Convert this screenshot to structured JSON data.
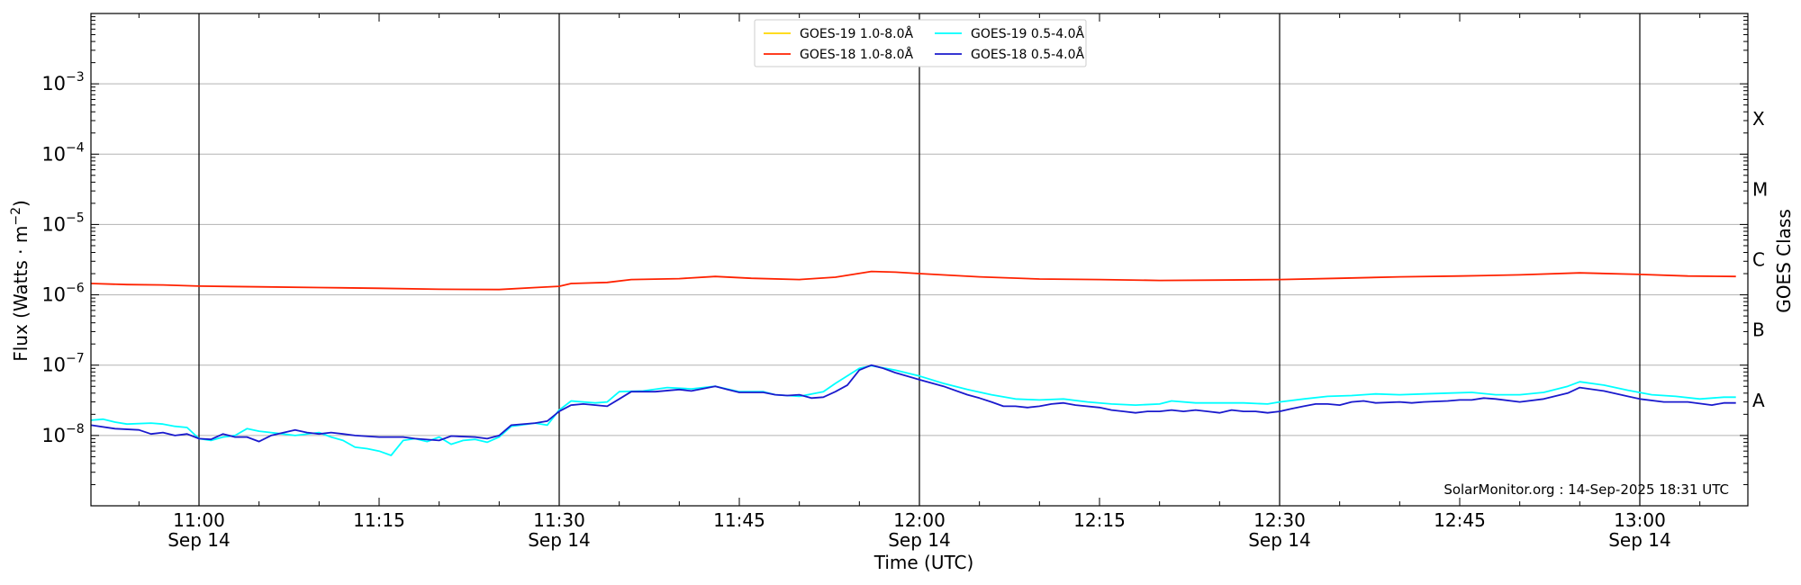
{
  "chart_data": {
    "type": "line",
    "title": "",
    "xlabel": "Time (UTC)",
    "ylabel_main": "Flux (Watts · m",
    "ylabel_sup": "−2",
    "ylabel_close": ")",
    "y2label": "GOES Class",
    "y_scale": "log",
    "ylim": [
      1e-09,
      0.01
    ],
    "xlim": [
      "10:51",
      "13:09"
    ],
    "x_ticks": [
      {
        "t": "11:00",
        "label": "11:00",
        "sub": "Sep 14"
      },
      {
        "t": "11:15",
        "label": "11:15",
        "sub": ""
      },
      {
        "t": "11:30",
        "label": "11:30",
        "sub": "Sep 14"
      },
      {
        "t": "11:45",
        "label": "11:45",
        "sub": ""
      },
      {
        "t": "12:00",
        "label": "12:00",
        "sub": "Sep 14"
      },
      {
        "t": "12:15",
        "label": "12:15",
        "sub": ""
      },
      {
        "t": "12:30",
        "label": "12:30",
        "sub": "Sep 14"
      },
      {
        "t": "12:45",
        "label": "12:45",
        "sub": ""
      },
      {
        "t": "13:00",
        "label": "13:00",
        "sub": "Sep 14"
      }
    ],
    "y_ticks": [
      {
        "v": 1e-08,
        "base": "10",
        "exp": "−8"
      },
      {
        "v": 1e-07,
        "base": "10",
        "exp": "−7"
      },
      {
        "v": 1e-06,
        "base": "10",
        "exp": "−6"
      },
      {
        "v": 1e-05,
        "base": "10",
        "exp": "−5"
      },
      {
        "v": 0.0001,
        "base": "10",
        "exp": "−4"
      },
      {
        "v": 0.001,
        "base": "10",
        "exp": "−3"
      }
    ],
    "goes_classes": [
      {
        "label": "A",
        "v": 1e-08
      },
      {
        "label": "B",
        "v": 1e-07
      },
      {
        "label": "C",
        "v": 1e-06
      },
      {
        "label": "M",
        "v": 1e-05
      },
      {
        "label": "X",
        "v": 0.0001
      }
    ],
    "grid": {
      "horizontal": true,
      "vertical_lines_at": [
        "11:00",
        "11:30",
        "12:00",
        "12:30",
        "13:00"
      ]
    },
    "legend_position": "top-center",
    "legend": [
      {
        "label": "GOES-19 1.0-8.0Å",
        "color": "#ffd700"
      },
      {
        "label": "GOES-18 1.0-8.0Å",
        "color": "#ff2200"
      },
      {
        "label": "GOES-19 0.5-4.0Å",
        "color": "#00ffff"
      },
      {
        "label": "GOES-18 0.5-4.0Å",
        "color": "#1a1acd"
      }
    ],
    "annotation": "SolarMonitor.org : 14-Sep-2025 18:31 UTC",
    "series": [
      {
        "name": "GOES-19 1.0-8.0Å",
        "color": "#ffd700",
        "points": []
      },
      {
        "name": "GOES-18 1.0-8.0Å",
        "color": "#ff2200",
        "points": [
          [
            "10:51",
            1.45e-06
          ],
          [
            "10:54",
            1.4e-06
          ],
          [
            "10:57",
            1.38e-06
          ],
          [
            "11:00",
            1.33e-06
          ],
          [
            "11:05",
            1.3e-06
          ],
          [
            "11:10",
            1.27e-06
          ],
          [
            "11:15",
            1.24e-06
          ],
          [
            "11:20",
            1.2e-06
          ],
          [
            "11:25",
            1.19e-06
          ],
          [
            "11:28",
            1.27e-06
          ],
          [
            "11:30",
            1.32e-06
          ],
          [
            "11:31",
            1.45e-06
          ],
          [
            "11:34",
            1.5e-06
          ],
          [
            "11:36",
            1.65e-06
          ],
          [
            "11:40",
            1.7e-06
          ],
          [
            "11:43",
            1.82e-06
          ],
          [
            "11:46",
            1.72e-06
          ],
          [
            "11:50",
            1.65e-06
          ],
          [
            "11:53",
            1.78e-06
          ],
          [
            "11:56",
            2.15e-06
          ],
          [
            "11:58",
            2.1e-06
          ],
          [
            "12:00",
            2e-06
          ],
          [
            "12:05",
            1.8e-06
          ],
          [
            "12:10",
            1.68e-06
          ],
          [
            "12:15",
            1.65e-06
          ],
          [
            "12:20",
            1.6e-06
          ],
          [
            "12:25",
            1.62e-06
          ],
          [
            "12:30",
            1.65e-06
          ],
          [
            "12:35",
            1.72e-06
          ],
          [
            "12:40",
            1.8e-06
          ],
          [
            "12:45",
            1.85e-06
          ],
          [
            "12:50",
            1.92e-06
          ],
          [
            "12:55",
            2.05e-06
          ],
          [
            "13:00",
            1.95e-06
          ],
          [
            "13:04",
            1.85e-06
          ],
          [
            "13:08",
            1.82e-06
          ]
        ]
      },
      {
        "name": "GOES-19 0.5-4.0Å",
        "color": "#00ffff",
        "points": [
          [
            "10:51",
            1.65e-08
          ],
          [
            "10:52",
            1.7e-08
          ],
          [
            "10:53",
            1.55e-08
          ],
          [
            "10:54",
            1.45e-08
          ],
          [
            "10:56",
            1.5e-08
          ],
          [
            "10:57",
            1.45e-08
          ],
          [
            "10:58",
            1.35e-08
          ],
          [
            "10:59",
            1.3e-08
          ],
          [
            "11:00",
            9e-09
          ],
          [
            "11:01",
            8.5e-09
          ],
          [
            "11:02",
            9.5e-09
          ],
          [
            "11:03",
            1e-08
          ],
          [
            "11:04",
            1.25e-08
          ],
          [
            "11:05",
            1.15e-08
          ],
          [
            "11:06",
            1.1e-08
          ],
          [
            "11:07",
            1.05e-08
          ],
          [
            "11:08",
            1e-08
          ],
          [
            "11:10",
            1.1e-08
          ],
          [
            "11:11",
            9.5e-09
          ],
          [
            "11:12",
            8.5e-09
          ],
          [
            "11:13",
            6.8e-09
          ],
          [
            "11:14",
            6.5e-09
          ],
          [
            "11:15",
            6e-09
          ],
          [
            "11:16",
            5.2e-09
          ],
          [
            "11:17",
            8.5e-09
          ],
          [
            "11:18",
            9e-09
          ],
          [
            "11:19",
            8.2e-09
          ],
          [
            "11:20",
            9.5e-09
          ],
          [
            "11:21",
            7.5e-09
          ],
          [
            "11:22",
            8.5e-09
          ],
          [
            "11:23",
            8.8e-09
          ],
          [
            "11:24",
            8e-09
          ],
          [
            "11:25",
            9.5e-09
          ],
          [
            "11:26",
            1.35e-08
          ],
          [
            "11:28",
            1.5e-08
          ],
          [
            "11:29",
            1.4e-08
          ],
          [
            "11:30",
            2.3e-08
          ],
          [
            "11:31",
            3.1e-08
          ],
          [
            "11:32",
            3e-08
          ],
          [
            "11:33",
            2.9e-08
          ],
          [
            "11:34",
            3e-08
          ],
          [
            "11:35",
            4.2e-08
          ],
          [
            "11:37",
            4.3e-08
          ],
          [
            "11:39",
            4.8e-08
          ],
          [
            "11:41",
            4.6e-08
          ],
          [
            "11:43",
            5e-08
          ],
          [
            "11:45",
            4.2e-08
          ],
          [
            "11:47",
            4.2e-08
          ],
          [
            "11:48",
            3.8e-08
          ],
          [
            "11:50",
            3.6e-08
          ],
          [
            "11:52",
            4.2e-08
          ],
          [
            "11:53",
            5.5e-08
          ],
          [
            "11:55",
            9e-08
          ],
          [
            "11:56",
            9.8e-08
          ],
          [
            "11:58",
            8.5e-08
          ],
          [
            "12:00",
            7e-08
          ],
          [
            "12:02",
            5.5e-08
          ],
          [
            "12:04",
            4.5e-08
          ],
          [
            "12:06",
            3.8e-08
          ],
          [
            "12:08",
            3.3e-08
          ],
          [
            "12:10",
            3.2e-08
          ],
          [
            "12:12",
            3.3e-08
          ],
          [
            "12:14",
            3e-08
          ],
          [
            "12:16",
            2.8e-08
          ],
          [
            "12:18",
            2.7e-08
          ],
          [
            "12:20",
            2.8e-08
          ],
          [
            "12:21",
            3.1e-08
          ],
          [
            "12:23",
            2.9e-08
          ],
          [
            "12:25",
            2.9e-08
          ],
          [
            "12:27",
            2.9e-08
          ],
          [
            "12:29",
            2.8e-08
          ],
          [
            "12:30",
            3e-08
          ],
          [
            "12:32",
            3.3e-08
          ],
          [
            "12:34",
            3.6e-08
          ],
          [
            "12:36",
            3.7e-08
          ],
          [
            "12:38",
            3.9e-08
          ],
          [
            "12:40",
            3.8e-08
          ],
          [
            "12:42",
            3.9e-08
          ],
          [
            "12:44",
            4e-08
          ],
          [
            "12:46",
            4.1e-08
          ],
          [
            "12:48",
            3.8e-08
          ],
          [
            "12:50",
            3.8e-08
          ],
          [
            "12:52",
            4.1e-08
          ],
          [
            "12:54",
            5e-08
          ],
          [
            "12:55",
            5.8e-08
          ],
          [
            "12:57",
            5.2e-08
          ],
          [
            "12:59",
            4.4e-08
          ],
          [
            "13:01",
            3.8e-08
          ],
          [
            "13:03",
            3.6e-08
          ],
          [
            "13:05",
            3.3e-08
          ],
          [
            "13:07",
            3.5e-08
          ],
          [
            "13:08",
            3.5e-08
          ]
        ]
      },
      {
        "name": "GOES-18 0.5-4.0Å",
        "color": "#1a1acd",
        "points": [
          [
            "10:51",
            1.4e-08
          ],
          [
            "10:53",
            1.25e-08
          ],
          [
            "10:55",
            1.2e-08
          ],
          [
            "10:56",
            1.05e-08
          ],
          [
            "10:57",
            1.1e-08
          ],
          [
            "10:58",
            1e-08
          ],
          [
            "10:59",
            1.05e-08
          ],
          [
            "11:00",
            9e-09
          ],
          [
            "11:01",
            8.8e-09
          ],
          [
            "11:02",
            1.05e-08
          ],
          [
            "11:03",
            9.5e-09
          ],
          [
            "11:04",
            9.5e-09
          ],
          [
            "11:05",
            8.2e-09
          ],
          [
            "11:06",
            1e-08
          ],
          [
            "11:08",
            1.2e-08
          ],
          [
            "11:09",
            1.1e-08
          ],
          [
            "11:10",
            1.05e-08
          ],
          [
            "11:11",
            1.1e-08
          ],
          [
            "11:12",
            1.05e-08
          ],
          [
            "11:13",
            1e-08
          ],
          [
            "11:15",
            9.5e-09
          ],
          [
            "11:17",
            9.5e-09
          ],
          [
            "11:18",
            9e-09
          ],
          [
            "11:20",
            8.5e-09
          ],
          [
            "11:21",
            9.8e-09
          ],
          [
            "11:23",
            9.5e-09
          ],
          [
            "11:24",
            9e-09
          ],
          [
            "11:25",
            1e-08
          ],
          [
            "11:26",
            1.4e-08
          ],
          [
            "11:28",
            1.5e-08
          ],
          [
            "11:29",
            1.6e-08
          ],
          [
            "11:30",
            2.2e-08
          ],
          [
            "11:31",
            2.7e-08
          ],
          [
            "11:32",
            2.8e-08
          ],
          [
            "11:34",
            2.6e-08
          ],
          [
            "11:35",
            3.3e-08
          ],
          [
            "11:36",
            4.2e-08
          ],
          [
            "11:38",
            4.2e-08
          ],
          [
            "11:40",
            4.5e-08
          ],
          [
            "11:41",
            4.3e-08
          ],
          [
            "11:43",
            5e-08
          ],
          [
            "11:44",
            4.5e-08
          ],
          [
            "11:45",
            4.1e-08
          ],
          [
            "11:47",
            4.1e-08
          ],
          [
            "11:48",
            3.8e-08
          ],
          [
            "11:49",
            3.7e-08
          ],
          [
            "11:50",
            3.8e-08
          ],
          [
            "11:51",
            3.4e-08
          ],
          [
            "11:52",
            3.5e-08
          ],
          [
            "11:53",
            4.2e-08
          ],
          [
            "11:54",
            5.2e-08
          ],
          [
            "11:55",
            8.5e-08
          ],
          [
            "11:56",
            1e-07
          ],
          [
            "11:57",
            9e-08
          ],
          [
            "11:58",
            7.8e-08
          ],
          [
            "12:00",
            6.2e-08
          ],
          [
            "12:02",
            5e-08
          ],
          [
            "12:04",
            3.8e-08
          ],
          [
            "12:05",
            3.4e-08
          ],
          [
            "12:06",
            3e-08
          ],
          [
            "12:07",
            2.6e-08
          ],
          [
            "12:08",
            2.6e-08
          ],
          [
            "12:09",
            2.5e-08
          ],
          [
            "12:10",
            2.6e-08
          ],
          [
            "12:11",
            2.8e-08
          ],
          [
            "12:12",
            2.9e-08
          ],
          [
            "12:13",
            2.7e-08
          ],
          [
            "12:15",
            2.5e-08
          ],
          [
            "12:16",
            2.3e-08
          ],
          [
            "12:17",
            2.2e-08
          ],
          [
            "12:18",
            2.1e-08
          ],
          [
            "12:19",
            2.2e-08
          ],
          [
            "12:20",
            2.2e-08
          ],
          [
            "12:21",
            2.3e-08
          ],
          [
            "12:22",
            2.2e-08
          ],
          [
            "12:23",
            2.3e-08
          ],
          [
            "12:24",
            2.2e-08
          ],
          [
            "12:25",
            2.1e-08
          ],
          [
            "12:26",
            2.3e-08
          ],
          [
            "12:27",
            2.2e-08
          ],
          [
            "12:28",
            2.2e-08
          ],
          [
            "12:29",
            2.1e-08
          ],
          [
            "12:30",
            2.2e-08
          ],
          [
            "12:31",
            2.4e-08
          ],
          [
            "12:32",
            2.6e-08
          ],
          [
            "12:33",
            2.8e-08
          ],
          [
            "12:34",
            2.8e-08
          ],
          [
            "12:35",
            2.7e-08
          ],
          [
            "12:36",
            3e-08
          ],
          [
            "12:37",
            3.1e-08
          ],
          [
            "12:38",
            2.9e-08
          ],
          [
            "12:40",
            3e-08
          ],
          [
            "12:41",
            2.9e-08
          ],
          [
            "12:42",
            3e-08
          ],
          [
            "12:44",
            3.1e-08
          ],
          [
            "12:45",
            3.2e-08
          ],
          [
            "12:46",
            3.2e-08
          ],
          [
            "12:47",
            3.4e-08
          ],
          [
            "12:48",
            3.3e-08
          ],
          [
            "12:50",
            3e-08
          ],
          [
            "12:52",
            3.3e-08
          ],
          [
            "12:54",
            4e-08
          ],
          [
            "12:55",
            4.8e-08
          ],
          [
            "12:57",
            4.3e-08
          ],
          [
            "12:59",
            3.6e-08
          ],
          [
            "13:00",
            3.3e-08
          ],
          [
            "13:02",
            3e-08
          ],
          [
            "13:04",
            3e-08
          ],
          [
            "13:06",
            2.7e-08
          ],
          [
            "13:07",
            2.9e-08
          ],
          [
            "13:08",
            2.9e-08
          ]
        ]
      }
    ]
  }
}
